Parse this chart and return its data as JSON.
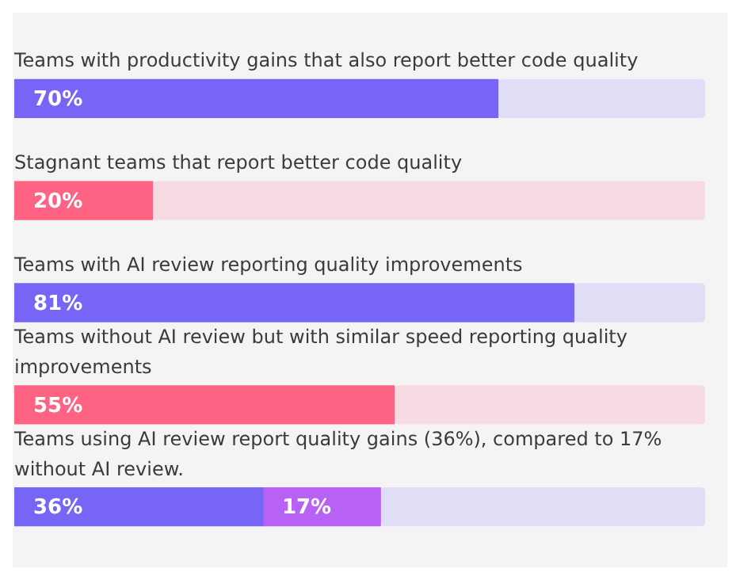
{
  "chart_data": {
    "type": "bar",
    "orientation": "horizontal",
    "stacked": true,
    "categories": [
      "Teams with productivity gains that also report better code quality",
      "Stagnant teams that report better code quality",
      "Teams with AI review reporting quality improvements",
      "Teams without AI review but with similar speed reporting quality improvements",
      "Teams using AI review report quality gains (36%), compared to 17% without AI review."
    ],
    "series": [
      {
        "colors": [
          "#7766f5",
          "#ff6384",
          "#7766f5",
          "#ff6384",
          "#7766f5"
        ],
        "values": [
          70,
          20,
          81,
          55,
          36
        ],
        "value_labels": [
          "70%",
          "20%",
          "81%",
          "55%",
          "36%"
        ]
      },
      {
        "color": "#b762f5",
        "values": [
          null,
          null,
          null,
          null,
          17
        ],
        "value_labels": [
          null,
          null,
          null,
          null,
          "17%"
        ]
      },
      {
        "colors": [
          "#e0ddf7",
          "#f6dce2",
          "#e0ddf7",
          "#f6dce2",
          "#e0ddf7"
        ],
        "values": [
          30,
          80,
          19,
          45,
          47
        ]
      }
    ],
    "xlim": [
      0,
      100
    ],
    "tick_labels": false,
    "grid": false,
    "legend": false
  }
}
